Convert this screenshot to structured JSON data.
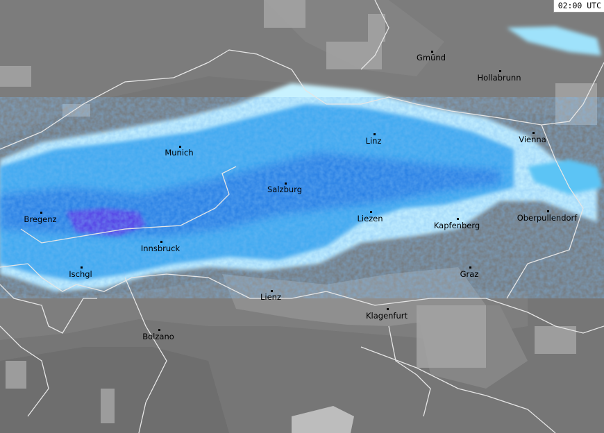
{
  "timestamp": "02:00 UTC",
  "palette": {
    "background": "#767676",
    "border": "#e0e0e0",
    "precip_light": "#bfefff",
    "precip_medium": "#3aa8f0",
    "precip_heavy": "#1565d8",
    "precip_extreme": "#5a2ce0"
  },
  "cities": [
    {
      "id": "gmund",
      "name": "Gmünd"
    },
    {
      "id": "hollabrunn",
      "name": "Hollabrunn"
    },
    {
      "id": "munich",
      "name": "Munich"
    },
    {
      "id": "linz",
      "name": "Linz"
    },
    {
      "id": "vienna",
      "name": "Vienna"
    },
    {
      "id": "salzburg",
      "name": "Salzburg"
    },
    {
      "id": "bregenz",
      "name": "Bregenz"
    },
    {
      "id": "liezen",
      "name": "Liezen"
    },
    {
      "id": "kapfenberg",
      "name": "Kapfenberg"
    },
    {
      "id": "oberpullendorf",
      "name": "Oberpullendorf"
    },
    {
      "id": "innsbruck",
      "name": "Innsbruck"
    },
    {
      "id": "ischgl",
      "name": "Ischgl"
    },
    {
      "id": "graz",
      "name": "Graz"
    },
    {
      "id": "lienz",
      "name": "Lienz"
    },
    {
      "id": "klagenfurt",
      "name": "Klagenfurt"
    },
    {
      "id": "bolzano",
      "name": "Bolzano"
    }
  ]
}
